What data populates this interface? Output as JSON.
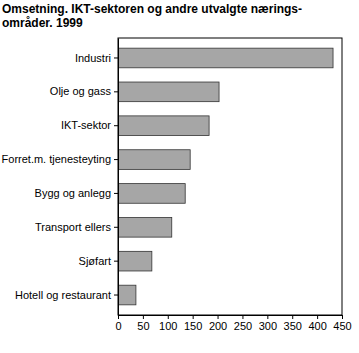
{
  "chart_data": {
    "type": "bar",
    "title": [
      "Omsetning. IKT-sektoren og andre utvalgte nærings-",
      "områder. 1999"
    ],
    "categories": [
      "Industri",
      "Olje og gass",
      "IKT-sektor",
      "Forret.m. tjenesteyting",
      "Bygg og anlegg",
      "Transport ellers",
      "Sjøfart",
      "Hotell og restaurant"
    ],
    "values": [
      432,
      203,
      183,
      145,
      135,
      108,
      68,
      36
    ],
    "color": "#a6a6a6",
    "orientation": "horizontal",
    "grid": false,
    "xlim": [
      0,
      450
    ],
    "xticks": [
      0,
      50,
      100,
      150,
      200,
      250,
      300,
      350,
      400,
      450
    ]
  }
}
